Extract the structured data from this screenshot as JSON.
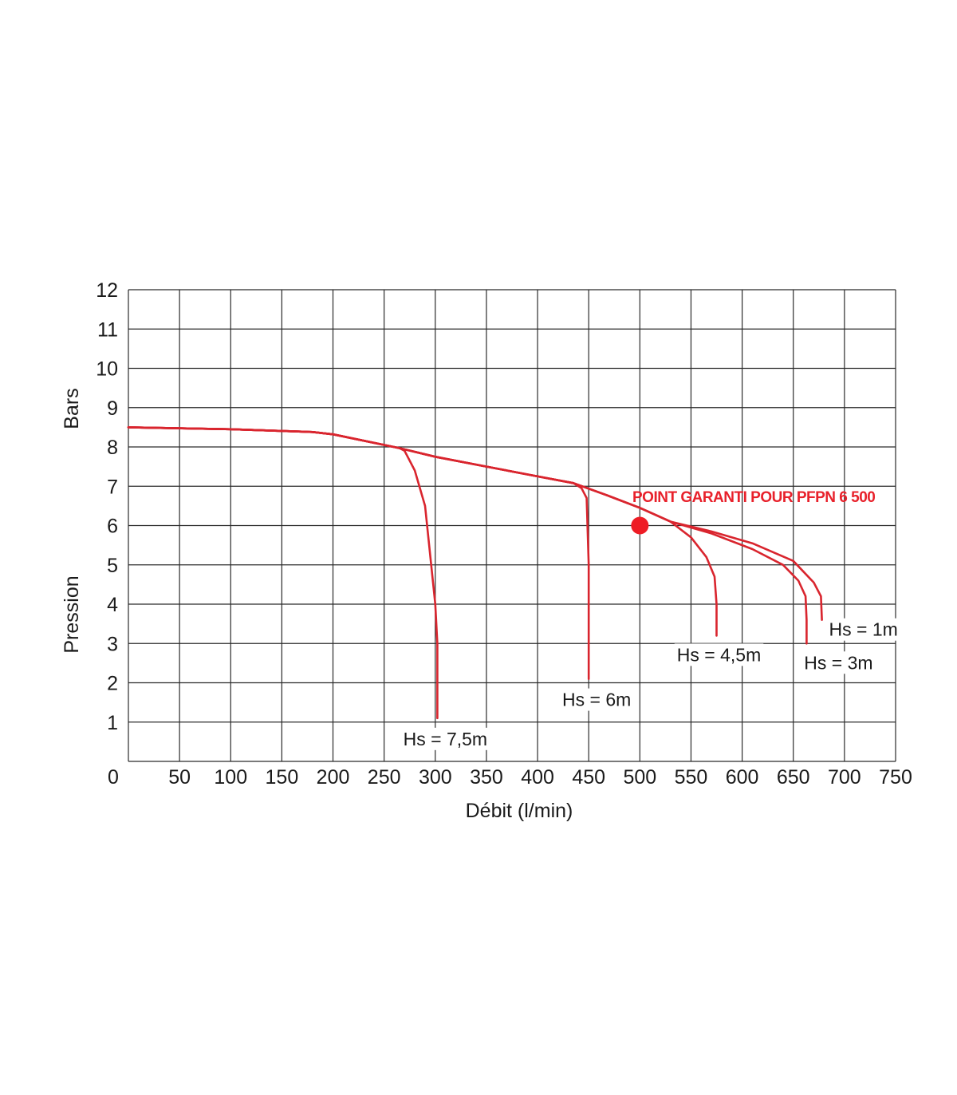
{
  "chart_data": {
    "type": "line",
    "title": "",
    "xlabel": "Débit (l/min)",
    "ylabel_top": "Bars",
    "ylabel_bottom": "Pression",
    "xlim": [
      0,
      750
    ],
    "ylim": [
      0,
      12
    ],
    "x_ticks": [
      0,
      50,
      100,
      150,
      200,
      250,
      300,
      350,
      400,
      450,
      500,
      550,
      600,
      650,
      700,
      750
    ],
    "y_ticks": [
      1,
      2,
      3,
      4,
      5,
      6,
      7,
      8,
      9,
      10,
      11,
      12
    ],
    "grid": true,
    "line_color": "#d9252e",
    "point_color": "#ee1c25",
    "series": [
      {
        "label": "Hs = 7,5m",
        "points": [
          [
            0,
            8.5
          ],
          [
            100,
            8.45
          ],
          [
            180,
            8.38
          ],
          [
            200,
            8.32
          ],
          [
            250,
            8.05
          ],
          [
            265,
            7.97
          ],
          [
            270,
            7.9
          ],
          [
            280,
            7.4
          ],
          [
            290,
            6.5
          ],
          [
            300,
            4.0
          ],
          [
            302,
            3.0
          ],
          [
            302,
            1.1
          ]
        ]
      },
      {
        "label": "Hs = 6m",
        "points": [
          [
            0,
            8.5
          ],
          [
            100,
            8.45
          ],
          [
            180,
            8.38
          ],
          [
            200,
            8.32
          ],
          [
            250,
            8.05
          ],
          [
            265,
            7.97
          ],
          [
            300,
            7.75
          ],
          [
            350,
            7.5
          ],
          [
            400,
            7.25
          ],
          [
            435,
            7.08
          ],
          [
            443,
            6.95
          ],
          [
            448,
            6.7
          ],
          [
            450,
            5.0
          ],
          [
            450,
            2.1
          ]
        ]
      },
      {
        "label": "Hs = 4,5m",
        "points": [
          [
            0,
            8.5
          ],
          [
            100,
            8.45
          ],
          [
            180,
            8.38
          ],
          [
            200,
            8.32
          ],
          [
            250,
            8.05
          ],
          [
            265,
            7.97
          ],
          [
            300,
            7.75
          ],
          [
            350,
            7.5
          ],
          [
            400,
            7.25
          ],
          [
            435,
            7.08
          ],
          [
            470,
            6.75
          ],
          [
            500,
            6.45
          ],
          [
            530,
            6.1
          ],
          [
            550,
            5.7
          ],
          [
            565,
            5.2
          ],
          [
            573,
            4.7
          ],
          [
            575,
            4.0
          ],
          [
            575,
            3.2
          ]
        ]
      },
      {
        "label": "Hs = 3m",
        "points": [
          [
            0,
            8.5
          ],
          [
            100,
            8.45
          ],
          [
            180,
            8.38
          ],
          [
            200,
            8.32
          ],
          [
            250,
            8.05
          ],
          [
            265,
            7.97
          ],
          [
            300,
            7.75
          ],
          [
            350,
            7.5
          ],
          [
            400,
            7.25
          ],
          [
            435,
            7.08
          ],
          [
            470,
            6.75
          ],
          [
            500,
            6.45
          ],
          [
            530,
            6.1
          ],
          [
            570,
            5.8
          ],
          [
            610,
            5.4
          ],
          [
            640,
            5.0
          ],
          [
            655,
            4.6
          ],
          [
            662,
            4.2
          ],
          [
            663,
            3.6
          ],
          [
            663,
            3.0
          ]
        ]
      },
      {
        "label": "Hs = 1m",
        "points": [
          [
            0,
            8.5
          ],
          [
            100,
            8.45
          ],
          [
            180,
            8.38
          ],
          [
            200,
            8.32
          ],
          [
            250,
            8.05
          ],
          [
            265,
            7.97
          ],
          [
            300,
            7.75
          ],
          [
            350,
            7.5
          ],
          [
            400,
            7.25
          ],
          [
            435,
            7.08
          ],
          [
            470,
            6.75
          ],
          [
            500,
            6.45
          ],
          [
            530,
            6.1
          ],
          [
            570,
            5.85
          ],
          [
            610,
            5.55
          ],
          [
            650,
            5.1
          ],
          [
            670,
            4.55
          ],
          [
            677,
            4.2
          ],
          [
            678,
            3.6
          ]
        ]
      }
    ],
    "highlight_point": {
      "x": 500,
      "y": 6.0,
      "label": "POINT GARANTI POUR PFPN 6 500"
    }
  }
}
